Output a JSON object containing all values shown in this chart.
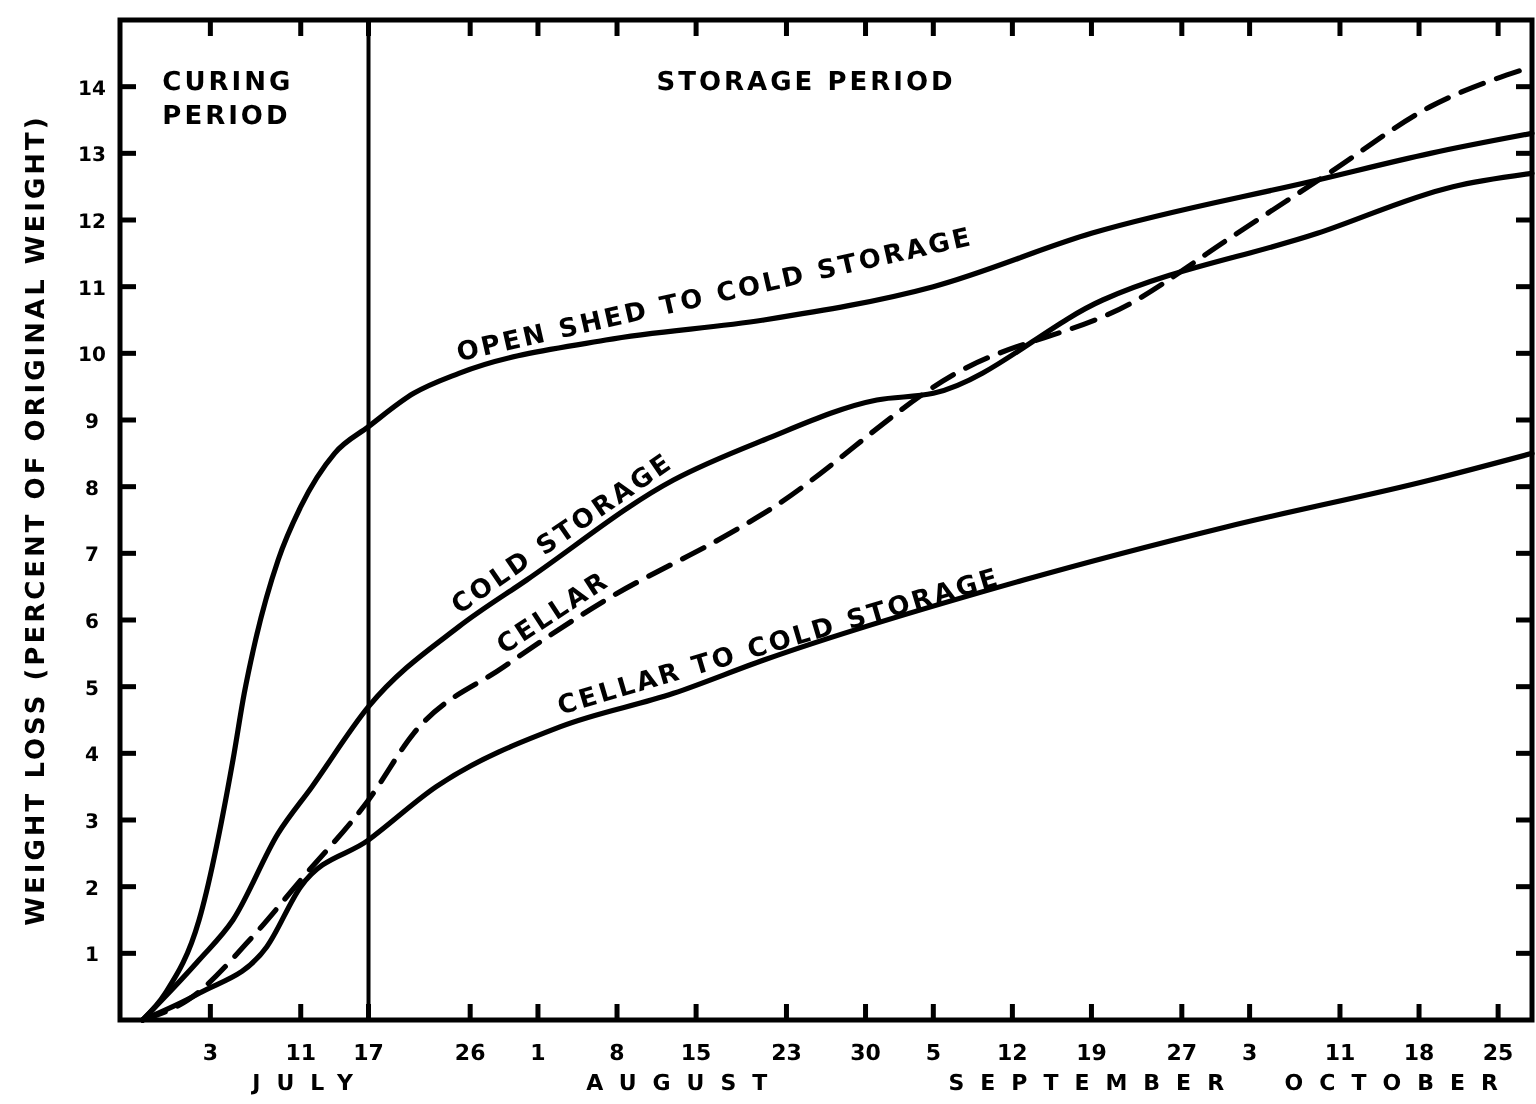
{
  "chart_data": {
    "type": "line",
    "ylabel": "WEIGHT LOSS (PERCENT OF ORIGINAL WEIGHT)",
    "xlim": [
      "--06-25",
      "--10-28"
    ],
    "xticks": [
      {
        "value": "--07-03",
        "label": "3"
      },
      {
        "value": "--07-11",
        "label": "11"
      },
      {
        "value": "--07-17",
        "label": "17"
      },
      {
        "value": "--07-26",
        "label": "26"
      },
      {
        "value": "--08-01",
        "label": "1"
      },
      {
        "value": "--08-08",
        "label": "8"
      },
      {
        "value": "--08-15",
        "label": "15"
      },
      {
        "value": "--08-23",
        "label": "23"
      },
      {
        "value": "--08-30",
        "label": "30"
      },
      {
        "value": "--09-05",
        "label": "5"
      },
      {
        "value": "--09-12",
        "label": "12"
      },
      {
        "value": "--09-19",
        "label": "19"
      },
      {
        "value": "--09-27",
        "label": "27"
      },
      {
        "value": "--10-03",
        "label": "3"
      },
      {
        "value": "--10-11",
        "label": "11"
      },
      {
        "value": "--10-18",
        "label": "18"
      },
      {
        "value": "--10-25",
        "label": "25"
      }
    ],
    "ylim": [
      0,
      15
    ],
    "yticks": [
      1,
      2,
      3,
      4,
      5,
      6,
      7,
      8,
      9,
      10,
      11,
      12,
      13,
      14
    ],
    "grid": false,
    "marker": "none",
    "series": [
      {
        "name": "OPEN SHED TO COLD STORAGE",
        "color": "#000000",
        "line_style": "solid",
        "x": [
          "--06-27",
          "--06-29",
          "--07-02",
          "--07-05",
          "--07-06",
          "--07-07",
          "--07-09",
          "--07-11",
          "--07-14",
          "--07-17",
          "--07-21",
          "--07-25",
          "--08-07",
          "--08-21",
          "--09-05",
          "--09-19",
          "--10-09",
          "--10-19",
          "--10-28"
        ],
        "values": [
          0,
          0.4,
          1.5,
          3.9,
          4.9,
          5.7,
          6.9,
          7.7,
          8.5,
          8.9,
          9.4,
          9.7,
          10.2,
          10.5,
          11.0,
          11.8,
          12.6,
          13.0,
          13.3
        ]
      },
      {
        "name": "COLD STORAGE",
        "color": "#000000",
        "line_style": "solid",
        "x": [
          "--06-27",
          "--07-02",
          "--07-05",
          "--07-09",
          "--07-12",
          "--07-17",
          "--07-25",
          "--07-31",
          "--08-13",
          "--08-21",
          "--08-31",
          "--09-05",
          "--09-20",
          "--10-09",
          "--10-21",
          "--10-28"
        ],
        "values": [
          0,
          0.9,
          1.5,
          2.8,
          3.5,
          4.7,
          5.9,
          6.6,
          8.1,
          8.7,
          9.3,
          9.4,
          10.8,
          11.8,
          12.5,
          12.7
        ]
      },
      {
        "name": "CELLAR",
        "color": "#000000",
        "line_style": "dashed",
        "x": [
          "--06-27",
          "--07-01",
          "--07-07",
          "--07-11",
          "--07-17",
          "--07-21",
          "--07-29",
          "--08-07",
          "--08-18",
          "--08-21",
          "--09-07",
          "--09-23",
          "--10-01",
          "--10-10",
          "--10-19",
          "--10-28"
        ],
        "values": [
          0,
          0.3,
          1.3,
          2.1,
          3.3,
          4.3,
          5.3,
          6.3,
          7.3,
          7.6,
          9.7,
          10.8,
          11.7,
          12.7,
          13.7,
          14.3
        ]
      },
      {
        "name": "CELLAR TO COLD STORAGE",
        "color": "#000000",
        "line_style": "solid",
        "x": [
          "--06-27",
          "--07-02",
          "--07-08",
          "--07-11",
          "--07-17",
          "--07-23",
          "--08-03",
          "--08-13",
          "--08-21",
          "--09-13",
          "--10-01",
          "--10-19",
          "--10-28"
        ],
        "values": [
          0,
          0.4,
          1.1,
          2.0,
          2.7,
          3.5,
          4.4,
          4.9,
          5.4,
          6.6,
          7.4,
          8.1,
          8.5
        ]
      }
    ],
    "ref_lines": [
      {
        "axis": "x",
        "value": "--07-17",
        "color": "#000000",
        "line_style": "solid"
      }
    ],
    "annotations": [
      "CURING PERIOD",
      "STORAGE PERIOD",
      "JULY",
      "AUGUST",
      "SEPTEMBER",
      "OCTOBER"
    ]
  }
}
